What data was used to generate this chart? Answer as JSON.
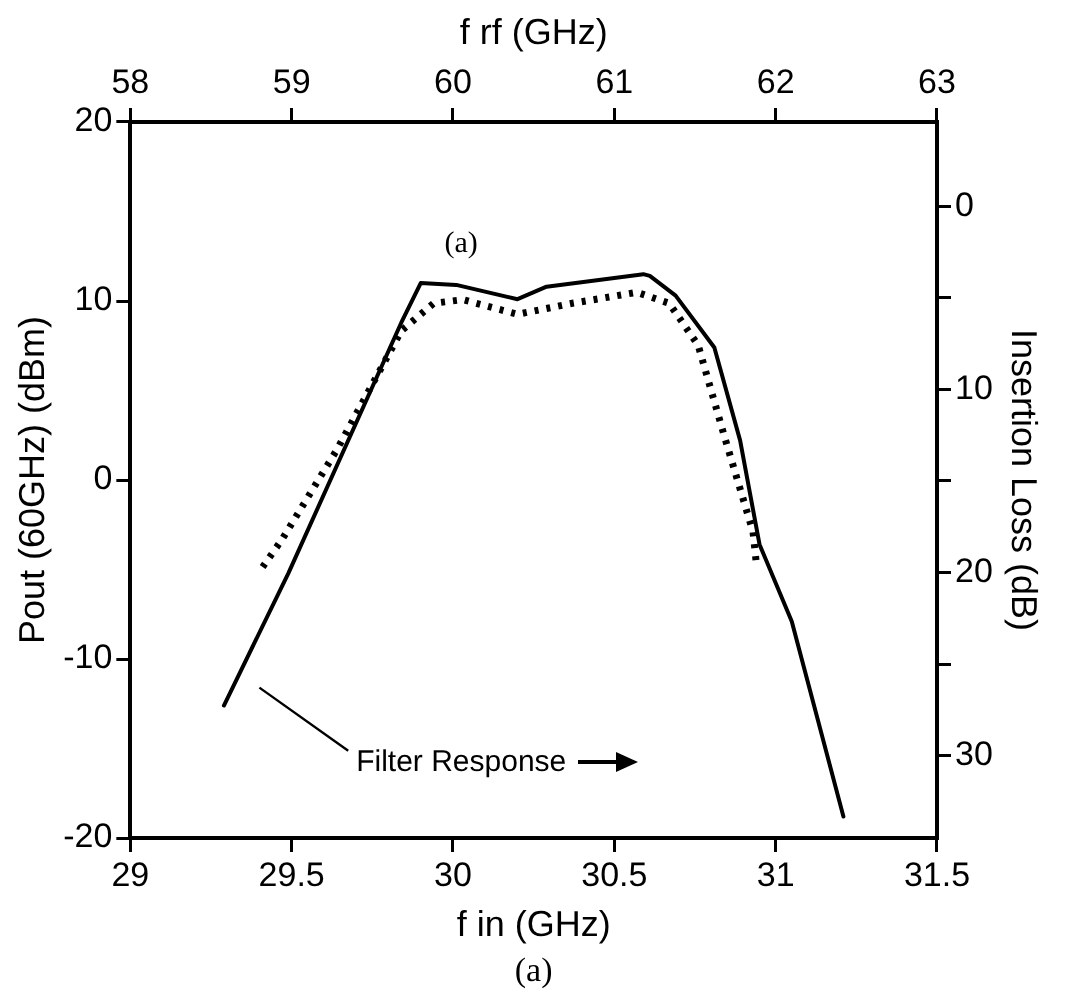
{
  "chart_data": {
    "type": "line",
    "xlabel": "f in (GHz)",
    "x2label": "f rf (GHz)",
    "ylabel": "Pout (60GHz) (dBm)",
    "y2label": "Insertion Loss (dB)",
    "xlim": [
      29,
      31.5
    ],
    "xticks": [
      29,
      29.5,
      30,
      30.5,
      31,
      31.5
    ],
    "x2lim": [
      58,
      63
    ],
    "x2ticks": [
      58,
      59,
      60,
      61,
      62,
      63
    ],
    "ylim": [
      -20,
      20
    ],
    "yticks": [
      -20,
      -10,
      0,
      10,
      20
    ],
    "y2lim": [
      34.5,
      -4.6
    ],
    "y2ticks": [
      0,
      {
        "value": 5,
        "label": null
      },
      10,
      {
        "value": 15,
        "label": null
      },
      20,
      {
        "value": 25,
        "label": null
      },
      30
    ],
    "grid": false,
    "legend": false,
    "marker": "none",
    "series": [
      {
        "color": "#000000",
        "line_style": "solid",
        "x": [
          29.29,
          29.49,
          29.84,
          29.9,
          30.01,
          30.2,
          30.29,
          30.59,
          30.61,
          30.69,
          30.81,
          30.89,
          30.95,
          31.05,
          31.21
        ],
        "values": [
          -12.6,
          -5.2,
          8.8,
          11.0,
          10.9,
          10.1,
          10.8,
          11.5,
          11.4,
          10.3,
          7.4,
          2.2,
          -3.6,
          -7.9,
          -18.8
        ]
      },
      {
        "color": "#000000",
        "line_style": "dotted",
        "axis": "y2",
        "x": [
          29.41,
          29.47,
          29.64,
          29.84,
          29.94,
          30.03,
          30.2,
          30.37,
          30.57,
          30.67,
          30.76,
          30.84,
          30.93,
          30.94
        ],
        "values": [
          19.7,
          18.2,
          13.3,
          6.8,
          5.3,
          5.1,
          5.9,
          5.3,
          4.7,
          5.3,
          7.6,
          12.5,
          17.8,
          19.5
        ]
      }
    ],
    "annotations": [
      "Filter Response",
      "(a)",
      "(a)"
    ]
  }
}
